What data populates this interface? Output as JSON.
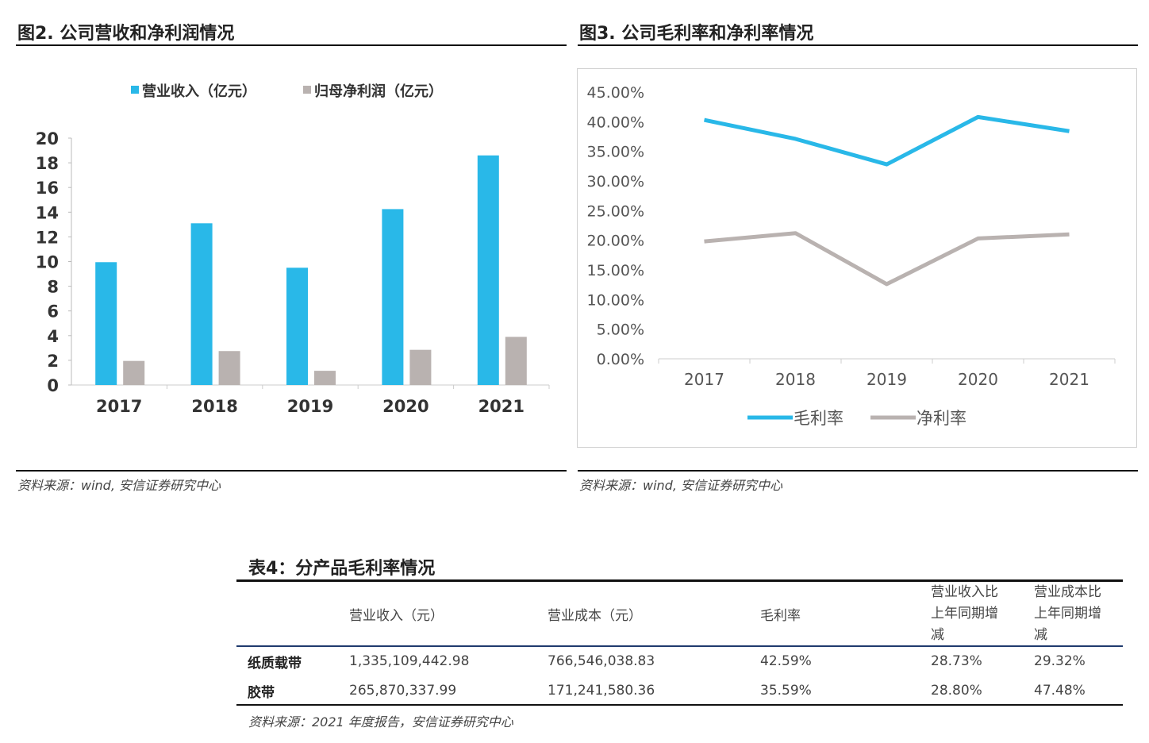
{
  "fig2": {
    "title": "图2. 公司营收和净利润情况",
    "source": "资料来源：wind, 安信证券研究中心"
  },
  "fig3": {
    "title": "图3. 公司毛利率和净利率情况",
    "source": "资料来源：wind, 安信证券研究中心"
  },
  "table4": {
    "title": "表4：分产品毛利率情况",
    "headers": [
      "",
      "营业收入（元）",
      "营业成本（元）",
      "毛利率",
      "营业收入比上年同期增减",
      "营业成本比上年同期增减"
    ],
    "rows": [
      [
        "纸质载带",
        "1,335,109,442.98",
        "766,546,038.83",
        "42.59%",
        "28.73%",
        "29.32%"
      ],
      [
        "胶带",
        "265,870,337.99",
        "171,241,580.36",
        "35.59%",
        "28.80%",
        "47.48%"
      ]
    ],
    "source": "资料来源：2021 年度报告，安信证券研究中心"
  },
  "chart_data": [
    {
      "type": "bar",
      "categories": [
        "2017",
        "2018",
        "2019",
        "2020",
        "2021"
      ],
      "series": [
        {
          "name": "营业收入（亿元）",
          "values": [
            9.95,
            13.1,
            9.5,
            14.25,
            18.6
          ],
          "color": "#29b8e8"
        },
        {
          "name": "归母净利润（亿元）",
          "values": [
            1.95,
            2.75,
            1.15,
            2.85,
            3.9
          ],
          "color": "#b9b2b0"
        }
      ],
      "ylim": [
        0,
        20
      ],
      "yticks": [
        "0",
        "2",
        "4",
        "6",
        "8",
        "10",
        "12",
        "14",
        "16",
        "18",
        "20"
      ],
      "legend": "top",
      "grid": false
    },
    {
      "type": "line",
      "categories": [
        "2017",
        "2018",
        "2019",
        "2020",
        "2021"
      ],
      "series": [
        {
          "name": "毛利率",
          "values": [
            40.3,
            37.1,
            32.8,
            40.8,
            38.4
          ],
          "color": "#29b8e8"
        },
        {
          "name": "净利率",
          "values": [
            19.8,
            21.2,
            12.6,
            20.3,
            21.0
          ],
          "color": "#b9b2b0"
        }
      ],
      "ylim": [
        0,
        45
      ],
      "yticks": [
        "0.00%",
        "5.00%",
        "10.00%",
        "15.00%",
        "20.00%",
        "25.00%",
        "30.00%",
        "35.00%",
        "40.00%",
        "45.00%"
      ],
      "legend": "bottom",
      "grid": false
    }
  ]
}
